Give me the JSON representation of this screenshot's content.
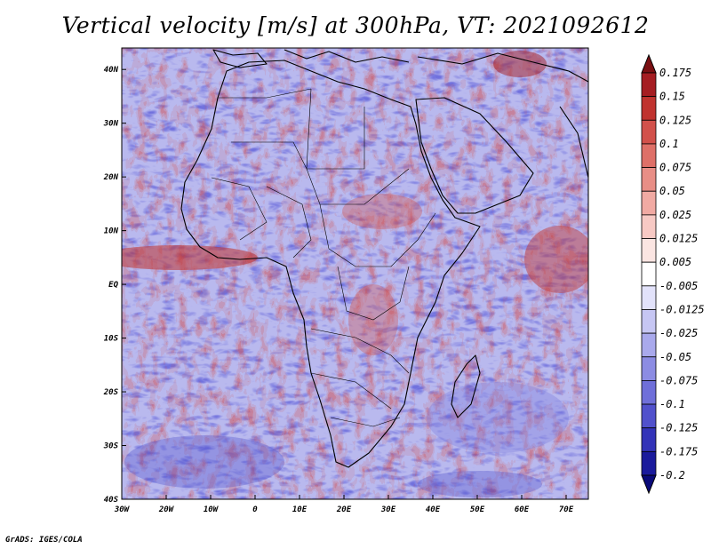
{
  "title": "Vertical velocity [m/s] at 300hPa, VT: 2021092612",
  "footer": "GrADS: IGES/COLA",
  "map": {
    "lon_ticks": [
      "30W",
      "20W",
      "10W",
      "0",
      "10E",
      "20E",
      "30E",
      "40E",
      "50E",
      "60E",
      "70E"
    ],
    "lat_ticks": [
      "40N",
      "30N",
      "20N",
      "10N",
      "EQ",
      "10S",
      "20S",
      "30S",
      "40S"
    ],
    "lon_range": [
      -30,
      75
    ],
    "lat_range": [
      -40,
      44
    ]
  },
  "colorbar": {
    "labels": [
      "0.175",
      "0.15",
      "0.125",
      "0.1",
      "0.075",
      "0.05",
      "0.025",
      "0.0125",
      "0.005",
      "-0.005",
      "-0.0125",
      "-0.025",
      "-0.05",
      "-0.075",
      "-0.1",
      "-0.125",
      "-0.175",
      "-0.2"
    ],
    "colors": [
      "#7a0f12",
      "#a51d22",
      "#c0332f",
      "#d2514b",
      "#de7068",
      "#e88e86",
      "#f1aaa3",
      "#f7c9c4",
      "#fbe5e2",
      "#ffffff",
      "#e2e2fa",
      "#c6c6f3",
      "#a9a9ec",
      "#8c8ce3",
      "#6f6fd9",
      "#5151cc",
      "#3333b8",
      "#1a1a9c",
      "#0a0a7a"
    ]
  }
}
